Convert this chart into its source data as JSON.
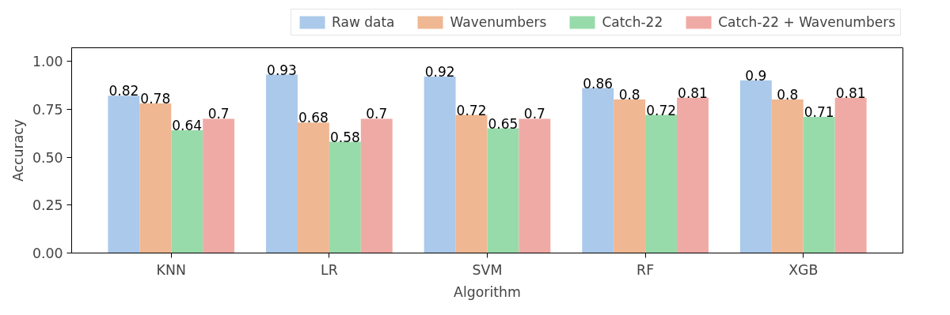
{
  "chart_data": {
    "type": "bar",
    "xlabel": "Algorithm",
    "ylabel": "Accuracy",
    "categories": [
      "KNN",
      "LR",
      "SVM",
      "RF",
      "XGB"
    ],
    "series": [
      {
        "name": "Raw data",
        "color": "#abc9ea",
        "values": [
          0.82,
          0.93,
          0.92,
          0.86,
          0.9
        ]
      },
      {
        "name": "Wavenumbers",
        "color": "#efb792",
        "values": [
          0.78,
          0.68,
          0.72,
          0.8,
          0.8
        ]
      },
      {
        "name": "Catch-22",
        "color": "#98dbaa",
        "values": [
          0.64,
          0.58,
          0.65,
          0.72,
          0.71
        ]
      },
      {
        "name": "Catch-22 + Wavenumbers",
        "color": "#f0aaa6",
        "values": [
          0.7,
          0.7,
          0.7,
          0.81,
          0.81
        ]
      }
    ],
    "ylim": [
      0,
      1.07
    ],
    "yticks": [
      {
        "value": 0,
        "label": "0.00"
      },
      {
        "value": 0.25,
        "label": "0.25"
      },
      {
        "value": 0.5,
        "label": "0.50"
      },
      {
        "value": 0.75,
        "label": "0.75"
      },
      {
        "value": 1,
        "label": "1.00"
      }
    ],
    "data_labels": true,
    "legend": "top right",
    "grid": false
  }
}
